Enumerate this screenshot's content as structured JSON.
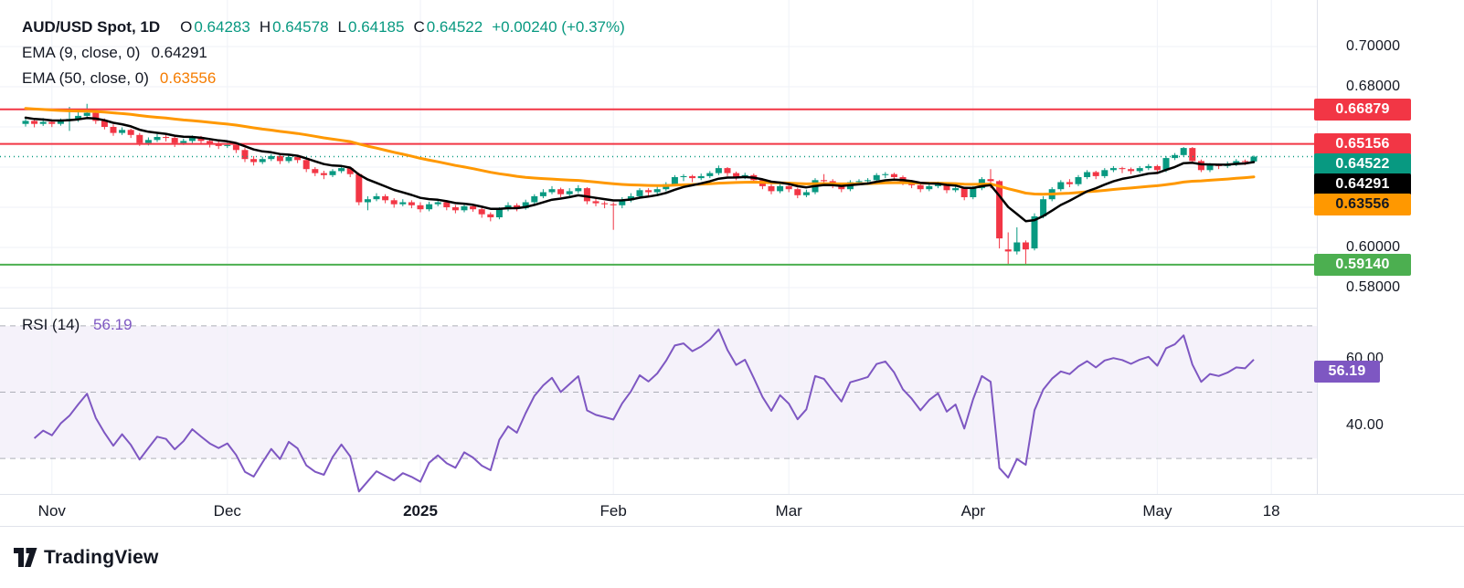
{
  "legend": {
    "symbol": "AUD/USD Spot, 1D",
    "o_label": "O",
    "o_value": "0.64283",
    "h_label": "H",
    "h_value": "0.64578",
    "l_label": "L",
    "l_value": "0.64185",
    "c_label": "C",
    "c_value": "0.64522",
    "change": "+0.00240 (+0.37%)",
    "ema9_label": "EMA (9, close, 0)",
    "ema9_value": "0.64291",
    "ema50_label": "EMA (50, close, 0)",
    "ema50_value": "0.63556",
    "rsi_label": "RSI (14)",
    "rsi_value": "56.19"
  },
  "colors": {
    "up": "#089981",
    "down": "#f23645",
    "grid": "#eff2f7",
    "text": "#131722",
    "ema9": "#000000",
    "ema50": "#ff9800",
    "rsi": "#7e57c2",
    "resistance": "#f23645",
    "support": "#4caf50"
  },
  "price_axis": {
    "labels": [
      {
        "text": "0.70000",
        "price": 0.7
      },
      {
        "text": "0.68000",
        "price": 0.68
      },
      {
        "text": "0.60000",
        "price": 0.6
      },
      {
        "text": "0.58000",
        "price": 0.58
      }
    ],
    "badges": [
      {
        "name": "resistance-1",
        "text": "0.66879",
        "price": 0.66879,
        "bg": "#f23645",
        "fg": "#ffffff"
      },
      {
        "name": "resistance-2",
        "text": "0.65156",
        "price": 0.65156,
        "bg": "#f23645",
        "fg": "#ffffff"
      },
      {
        "name": "last-price",
        "text": "0.64522",
        "price": 0.64522,
        "bg": "#089981",
        "fg": "#ffffff"
      },
      {
        "name": "ema9-value",
        "text": "0.64291",
        "price": 0.64291,
        "bg": "#000000",
        "fg": "#ffffff"
      },
      {
        "name": "ema50-value",
        "text": "0.63556",
        "price": 0.63556,
        "bg": "#ff9800",
        "fg": "#131722"
      },
      {
        "name": "support-1",
        "text": "0.59140",
        "price": 0.5914,
        "bg": "#4caf50",
        "fg": "#ffffff"
      }
    ]
  },
  "rsi_axis": {
    "labels": [
      {
        "text": "60.00",
        "value": 60
      },
      {
        "text": "40.00",
        "value": 40
      }
    ],
    "badge": {
      "text": "56.19",
      "value": 56.19,
      "bg": "#7e57c2",
      "fg": "#ffffff"
    }
  },
  "time_axis": {
    "labels": [
      {
        "text": "Nov",
        "index": 3
      },
      {
        "text": "Dec",
        "index": 23
      },
      {
        "text": "2025",
        "index": 45,
        "emphasis": true
      },
      {
        "text": "Feb",
        "index": 67
      },
      {
        "text": "Mar",
        "index": 87
      },
      {
        "text": "Apr",
        "index": 108
      },
      {
        "text": "May",
        "index": 129
      },
      {
        "text": "18",
        "index": 142
      }
    ]
  },
  "footer": {
    "brand": "TradingView"
  },
  "chart_data": [
    {
      "type": "candlestick",
      "title": "AUD/USD Spot",
      "timeframe": "1D",
      "ylim": [
        0.57,
        0.7232
      ],
      "grid_prices": [
        0.7,
        0.68,
        0.66,
        0.64,
        0.62,
        0.6,
        0.58
      ],
      "levels": [
        {
          "price": 0.66879,
          "color": "#f23645"
        },
        {
          "price": 0.65156,
          "color": "#f23645"
        },
        {
          "price": 0.5914,
          "color": "#4caf50"
        }
      ],
      "price_line": {
        "price": 0.64522,
        "color": "#089981"
      },
      "overlays": [
        {
          "name": "EMA 9",
          "period": 9,
          "color": "#000000",
          "width": 2.5,
          "start_value": 0.665,
          "value": 0.64291
        },
        {
          "name": "EMA 50",
          "period": 50,
          "color": "#ff9800",
          "width": 3,
          "start_value": 0.6695,
          "value": 0.63556
        }
      ],
      "ohlc_current": {
        "open": 0.64283,
        "high": 0.64578,
        "low": 0.64185,
        "close": 0.64522,
        "change": 0.0024,
        "change_pct": 0.37
      },
      "candles": [
        [
          0.6615,
          0.6642,
          0.6602,
          0.663
        ],
        [
          0.663,
          0.6638,
          0.6598,
          0.6615
        ],
        [
          0.6615,
          0.6644,
          0.6605,
          0.6625
        ],
        [
          0.6625,
          0.6634,
          0.6599,
          0.6615
        ],
        [
          0.6615,
          0.6642,
          0.6606,
          0.663
        ],
        [
          0.663,
          0.67,
          0.658,
          0.664
        ],
        [
          0.664,
          0.6685,
          0.6625,
          0.6655
        ],
        [
          0.6655,
          0.6715,
          0.664,
          0.667
        ],
        [
          0.667,
          0.668,
          0.6615,
          0.663
        ],
        [
          0.663,
          0.6642,
          0.6588,
          0.66
        ],
        [
          0.66,
          0.6612,
          0.6556,
          0.657
        ],
        [
          0.657,
          0.6598,
          0.656,
          0.6585
        ],
        [
          0.6585,
          0.6592,
          0.6545,
          0.656
        ],
        [
          0.656,
          0.657,
          0.6505,
          0.652
        ],
        [
          0.652,
          0.6548,
          0.6508,
          0.6535
        ],
        [
          0.6535,
          0.6565,
          0.6525,
          0.655
        ],
        [
          0.655,
          0.656,
          0.6528,
          0.6545
        ],
        [
          0.6545,
          0.6552,
          0.65,
          0.652
        ],
        [
          0.652,
          0.6542,
          0.651,
          0.653
        ],
        [
          0.653,
          0.6558,
          0.652,
          0.6545
        ],
        [
          0.6545,
          0.6555,
          0.6515,
          0.653
        ],
        [
          0.653,
          0.6538,
          0.6498,
          0.6515
        ],
        [
          0.6515,
          0.6528,
          0.649,
          0.6505
        ],
        [
          0.6505,
          0.6525,
          0.6495,
          0.651
        ],
        [
          0.651,
          0.6518,
          0.647,
          0.6485
        ],
        [
          0.6485,
          0.6495,
          0.6425,
          0.644
        ],
        [
          0.644,
          0.6455,
          0.6408,
          0.6425
        ],
        [
          0.6425,
          0.6452,
          0.6415,
          0.644
        ],
        [
          0.644,
          0.6465,
          0.643,
          0.6455
        ],
        [
          0.6455,
          0.6462,
          0.6415,
          0.643
        ],
        [
          0.643,
          0.646,
          0.642,
          0.645
        ],
        [
          0.645,
          0.6458,
          0.642,
          0.6435
        ],
        [
          0.6435,
          0.6442,
          0.6375,
          0.639
        ],
        [
          0.639,
          0.64,
          0.6355,
          0.637
        ],
        [
          0.637,
          0.6382,
          0.634,
          0.636
        ],
        [
          0.636,
          0.639,
          0.635,
          0.638
        ],
        [
          0.638,
          0.6405,
          0.637,
          0.6395
        ],
        [
          0.6395,
          0.64,
          0.635,
          0.6365
        ],
        [
          0.6365,
          0.6372,
          0.621,
          0.6225
        ],
        [
          0.6225,
          0.6255,
          0.6185,
          0.624
        ],
        [
          0.624,
          0.627,
          0.623,
          0.6255
        ],
        [
          0.6255,
          0.6265,
          0.622,
          0.6235
        ],
        [
          0.6235,
          0.6245,
          0.6198,
          0.6215
        ],
        [
          0.6215,
          0.624,
          0.6205,
          0.6225
        ],
        [
          0.6225,
          0.6235,
          0.6195,
          0.621
        ],
        [
          0.621,
          0.6225,
          0.6175,
          0.619
        ],
        [
          0.619,
          0.6228,
          0.618,
          0.6215
        ],
        [
          0.6215,
          0.624,
          0.6205,
          0.6225
        ],
        [
          0.6225,
          0.6235,
          0.6185,
          0.62
        ],
        [
          0.62,
          0.6212,
          0.617,
          0.6185
        ],
        [
          0.6185,
          0.6218,
          0.6175,
          0.6205
        ],
        [
          0.6205,
          0.6215,
          0.6178,
          0.619
        ],
        [
          0.619,
          0.62,
          0.6148,
          0.6165
        ],
        [
          0.6165,
          0.6175,
          0.613,
          0.615
        ],
        [
          0.615,
          0.62,
          0.614,
          0.619
        ],
        [
          0.619,
          0.6225,
          0.618,
          0.621
        ],
        [
          0.621,
          0.622,
          0.618,
          0.6195
        ],
        [
          0.6195,
          0.6238,
          0.6188,
          0.6225
        ],
        [
          0.6225,
          0.6265,
          0.6215,
          0.6255
        ],
        [
          0.6255,
          0.629,
          0.6245,
          0.6275
        ],
        [
          0.6275,
          0.6305,
          0.6265,
          0.629
        ],
        [
          0.629,
          0.6298,
          0.625,
          0.6265
        ],
        [
          0.6265,
          0.6295,
          0.6255,
          0.628
        ],
        [
          0.628,
          0.631,
          0.627,
          0.6295
        ],
        [
          0.6295,
          0.63,
          0.6215,
          0.623
        ],
        [
          0.623,
          0.6245,
          0.6205,
          0.622
        ],
        [
          0.622,
          0.623,
          0.6195,
          0.6215
        ],
        [
          0.6215,
          0.6225,
          0.6088,
          0.621
        ],
        [
          0.621,
          0.625,
          0.6195,
          0.6235
        ],
        [
          0.6235,
          0.627,
          0.6225,
          0.6255
        ],
        [
          0.6255,
          0.6295,
          0.6245,
          0.6285
        ],
        [
          0.6285,
          0.6295,
          0.6255,
          0.6275
        ],
        [
          0.6275,
          0.6305,
          0.6265,
          0.629
        ],
        [
          0.629,
          0.6325,
          0.628,
          0.6315
        ],
        [
          0.6315,
          0.636,
          0.6305,
          0.635
        ],
        [
          0.635,
          0.6365,
          0.633,
          0.6355
        ],
        [
          0.6355,
          0.6362,
          0.6325,
          0.6345
        ],
        [
          0.6345,
          0.6368,
          0.6335,
          0.6355
        ],
        [
          0.6355,
          0.638,
          0.6345,
          0.637
        ],
        [
          0.637,
          0.6408,
          0.636,
          0.6395
        ],
        [
          0.6395,
          0.64,
          0.6355,
          0.637
        ],
        [
          0.637,
          0.6378,
          0.6335,
          0.635
        ],
        [
          0.635,
          0.6372,
          0.634,
          0.636
        ],
        [
          0.636,
          0.6368,
          0.632,
          0.6335
        ],
        [
          0.6335,
          0.6342,
          0.629,
          0.6305
        ],
        [
          0.6305,
          0.6315,
          0.6265,
          0.628
        ],
        [
          0.628,
          0.6315,
          0.627,
          0.6305
        ],
        [
          0.6305,
          0.6315,
          0.6275,
          0.629
        ],
        [
          0.629,
          0.6298,
          0.6245,
          0.626
        ],
        [
          0.626,
          0.6288,
          0.625,
          0.6275
        ],
        [
          0.6275,
          0.6345,
          0.6265,
          0.6335
        ],
        [
          0.6335,
          0.6365,
          0.632,
          0.633
        ],
        [
          0.633,
          0.634,
          0.6295,
          0.631
        ],
        [
          0.631,
          0.632,
          0.6275,
          0.629
        ],
        [
          0.629,
          0.6335,
          0.628,
          0.6325
        ],
        [
          0.6325,
          0.634,
          0.631,
          0.633
        ],
        [
          0.633,
          0.6345,
          0.6315,
          0.6335
        ],
        [
          0.6335,
          0.637,
          0.6325,
          0.636
        ],
        [
          0.636,
          0.6375,
          0.6345,
          0.6365
        ],
        [
          0.6365,
          0.6372,
          0.6335,
          0.635
        ],
        [
          0.635,
          0.6358,
          0.631,
          0.6325
        ],
        [
          0.6325,
          0.6335,
          0.6295,
          0.631
        ],
        [
          0.631,
          0.6318,
          0.6275,
          0.629
        ],
        [
          0.629,
          0.6315,
          0.628,
          0.6305
        ],
        [
          0.6305,
          0.6328,
          0.6295,
          0.6315
        ],
        [
          0.6315,
          0.6322,
          0.627,
          0.6285
        ],
        [
          0.6285,
          0.6308,
          0.6275,
          0.6295
        ],
        [
          0.6295,
          0.6302,
          0.6235,
          0.625
        ],
        [
          0.625,
          0.6305,
          0.624,
          0.6295
        ],
        [
          0.6295,
          0.635,
          0.6285,
          0.634
        ],
        [
          0.634,
          0.639,
          0.6295,
          0.633
        ],
        [
          0.633,
          0.6335,
          0.5995,
          0.6045
        ],
        [
          0.599,
          0.6075,
          0.5915,
          0.598
        ],
        [
          0.598,
          0.61,
          0.5965,
          0.6025
        ],
        [
          0.6025,
          0.6035,
          0.5914,
          0.599
        ],
        [
          0.5995,
          0.617,
          0.5985,
          0.6155
        ],
        [
          0.6155,
          0.6255,
          0.6145,
          0.624
        ],
        [
          0.624,
          0.63,
          0.623,
          0.629
        ],
        [
          0.629,
          0.6335,
          0.628,
          0.6325
        ],
        [
          0.6325,
          0.634,
          0.63,
          0.6315
        ],
        [
          0.6315,
          0.636,
          0.6305,
          0.635
        ],
        [
          0.635,
          0.6385,
          0.634,
          0.6375
        ],
        [
          0.6375,
          0.6382,
          0.634,
          0.6355
        ],
        [
          0.6355,
          0.6395,
          0.6345,
          0.6385
        ],
        [
          0.6385,
          0.6405,
          0.6375,
          0.6395
        ],
        [
          0.6395,
          0.6402,
          0.637,
          0.639
        ],
        [
          0.639,
          0.6398,
          0.6365,
          0.638
        ],
        [
          0.638,
          0.6405,
          0.637,
          0.6395
        ],
        [
          0.6395,
          0.6415,
          0.6385,
          0.6405
        ],
        [
          0.6405,
          0.6412,
          0.6365,
          0.6385
        ],
        [
          0.6385,
          0.6455,
          0.6375,
          0.6445
        ],
        [
          0.6445,
          0.647,
          0.6435,
          0.646
        ],
        [
          0.646,
          0.65,
          0.645,
          0.6495
        ],
        [
          0.6495,
          0.65,
          0.642,
          0.643
        ],
        [
          0.643,
          0.6438,
          0.6375,
          0.6385
        ],
        [
          0.6385,
          0.642,
          0.6375,
          0.641
        ],
        [
          0.641,
          0.6418,
          0.639,
          0.6405
        ],
        [
          0.6405,
          0.6428,
          0.6395,
          0.6415
        ],
        [
          0.6415,
          0.644,
          0.6405,
          0.643
        ],
        [
          0.643,
          0.6438,
          0.641,
          0.6428
        ],
        [
          0.64283,
          0.64578,
          0.64185,
          0.64522
        ]
      ]
    },
    {
      "type": "line",
      "name": "RSI",
      "period": 14,
      "value": 56.19,
      "color": "#7e57c2",
      "bands": [
        70,
        50,
        30
      ],
      "ylim": [
        19.3,
        75.2
      ],
      "seed_avg_gain": 0.0008,
      "seed_avg_loss": 0.0013,
      "derived_from": "candles.close"
    }
  ]
}
